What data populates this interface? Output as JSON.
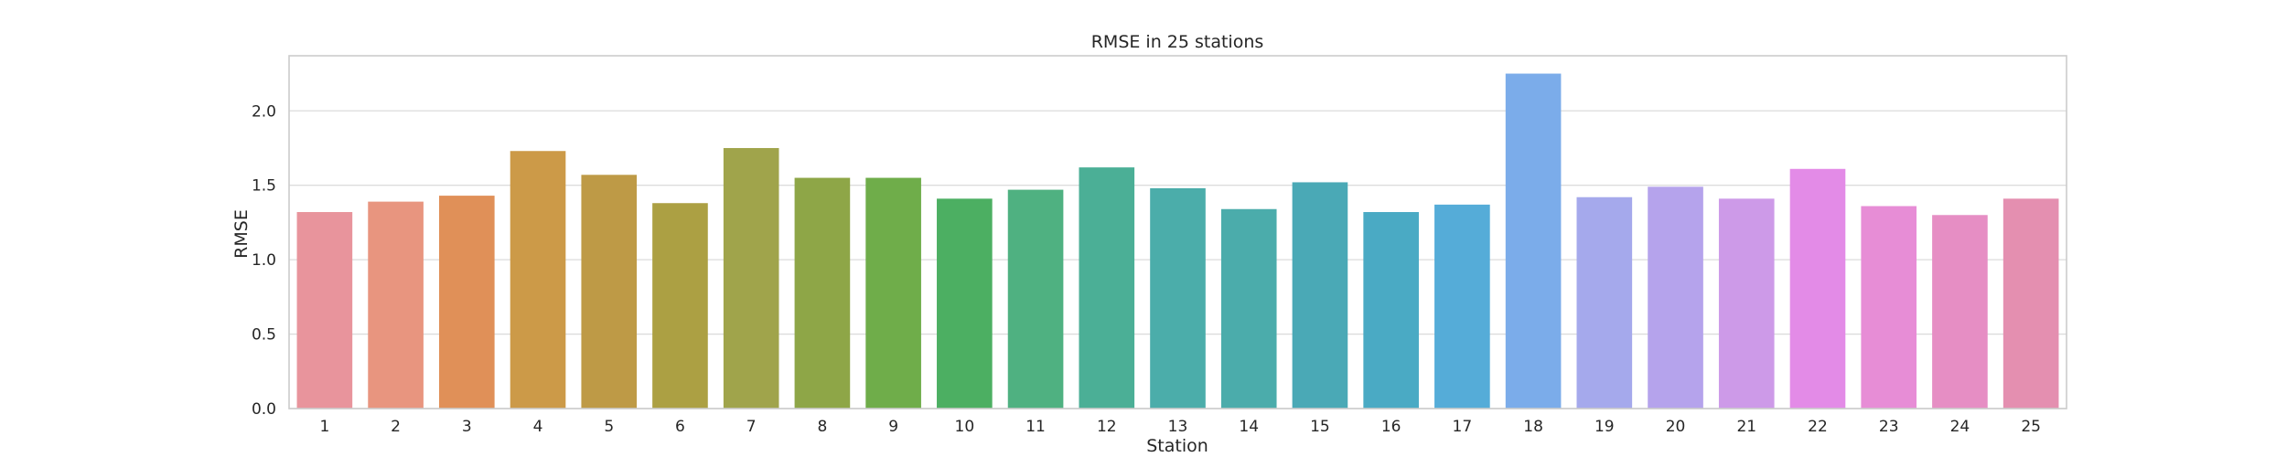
{
  "chart_data": {
    "type": "bar",
    "title": "RMSE in 25 stations",
    "xlabel": "Station",
    "ylabel": "RMSE",
    "categories": [
      "1",
      "2",
      "3",
      "4",
      "5",
      "6",
      "7",
      "8",
      "9",
      "10",
      "11",
      "12",
      "13",
      "14",
      "15",
      "16",
      "17",
      "18",
      "19",
      "20",
      "21",
      "22",
      "23",
      "24",
      "25"
    ],
    "values": [
      1.32,
      1.39,
      1.43,
      1.73,
      1.57,
      1.38,
      1.75,
      1.55,
      1.55,
      1.41,
      1.47,
      1.62,
      1.48,
      1.34,
      1.52,
      1.32,
      1.37,
      2.25,
      1.42,
      1.49,
      1.41,
      1.61,
      1.36,
      1.3,
      1.41
    ],
    "colors": [
      "#e8949c",
      "#e8957f",
      "#e09058",
      "#cc9a48",
      "#be9a46",
      "#aca043",
      "#a0a44b",
      "#8ea647",
      "#6fad4a",
      "#4caf62",
      "#4fb181",
      "#4baf96",
      "#4badaa",
      "#4bacab",
      "#4aa9b6",
      "#4aaac4",
      "#55acd8",
      "#7bacea",
      "#a5a9ec",
      "#b5a3ec",
      "#cd9ae8",
      "#e38be7",
      "#e78dd6",
      "#e68ec4",
      "#e48fb0"
    ],
    "yticks": [
      "0.0",
      "0.5",
      "1.0",
      "1.5",
      "2.0"
    ],
    "ylim": [
      0,
      2.37
    ],
    "grid": true,
    "legend": "none"
  }
}
